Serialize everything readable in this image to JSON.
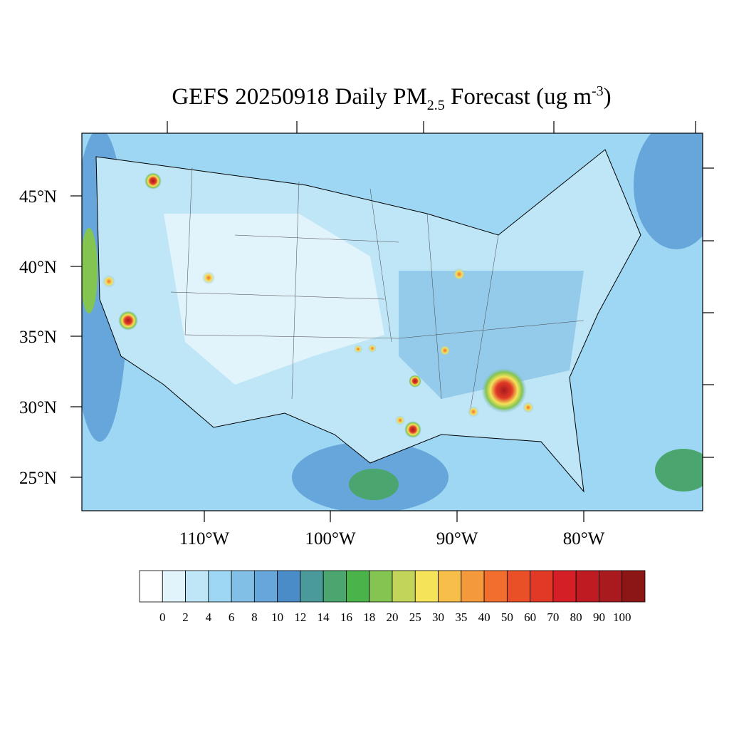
{
  "map": {
    "title": {
      "main": "GEFS 20250918 Daily PM",
      "sub": "2.5",
      "middle": " Forecast (ug m",
      "sup": "-3",
      "end": ")"
    },
    "lat_labels": [
      "45°N",
      "40°N",
      "35°N",
      "30°N",
      "25°N"
    ],
    "lon_labels": [
      "110°W",
      "100°W",
      "90°W",
      "80°W"
    ]
  },
  "colorbar": {
    "levels": [
      0,
      2,
      4,
      6,
      8,
      10,
      12,
      14,
      16,
      18,
      20,
      25,
      30,
      35,
      40,
      50,
      60,
      70,
      80,
      90,
      100
    ],
    "colors": [
      "#ffffff",
      "#e1f3fb",
      "#bfe6f7",
      "#9dd7f3",
      "#82bfe6",
      "#66a6da",
      "#4a8cc8",
      "#4a9a9a",
      "#4aa66e",
      "#4ab44a",
      "#84c450",
      "#c2d55a",
      "#f5e35a",
      "#f7be4a",
      "#f59a3c",
      "#f26e2e",
      "#ea5028",
      "#e03a26",
      "#d41f26",
      "#be1c22",
      "#a81a1e",
      "#8c1616"
    ]
  }
}
